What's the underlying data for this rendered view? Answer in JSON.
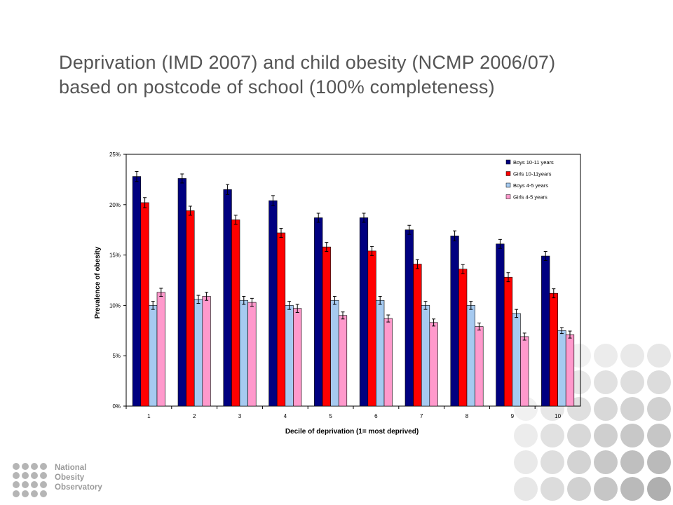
{
  "slide": {
    "title": "Deprivation (IMD 2007) and child obesity (NCMP 2006/07) based on postcode of school (100% completeness)"
  },
  "logo": {
    "line1": "National",
    "line2": "Obesity",
    "line3": "Observatory",
    "color": "#b5b5b5"
  },
  "chart_data": {
    "type": "bar",
    "xlabel": "Decile of deprivation (1= most deprived)",
    "ylabel": "Prevalence of obesity",
    "ylim": [
      0,
      25
    ],
    "yticks": [
      "0%",
      "5%",
      "10%",
      "15%",
      "20%",
      "25%"
    ],
    "categories": [
      "1",
      "2",
      "3",
      "4",
      "5",
      "6",
      "7",
      "8",
      "9",
      "10"
    ],
    "legend_position": "top-right",
    "grid": false,
    "error_bars": true,
    "series": [
      {
        "name": "Boys 10-11 years",
        "color": "#000080",
        "values": [
          22.8,
          22.6,
          21.5,
          20.4,
          18.7,
          18.7,
          17.5,
          16.9,
          16.1,
          14.9
        ],
        "error": [
          0.5,
          0.45,
          0.5,
          0.5,
          0.45,
          0.45,
          0.45,
          0.5,
          0.45,
          0.45
        ]
      },
      {
        "name": "Girls 10-11years",
        "color": "#ff0000",
        "values": [
          20.2,
          19.4,
          18.5,
          17.2,
          15.8,
          15.4,
          14.1,
          13.6,
          12.8,
          11.2
        ],
        "error": [
          0.5,
          0.45,
          0.45,
          0.45,
          0.45,
          0.45,
          0.45,
          0.45,
          0.45,
          0.45
        ]
      },
      {
        "name": "Boys 4-5 years",
        "color": "#a6caf0",
        "values": [
          10.0,
          10.6,
          10.5,
          10.0,
          10.5,
          10.5,
          10.0,
          10.0,
          9.2,
          7.5
        ],
        "error": [
          0.4,
          0.4,
          0.4,
          0.4,
          0.4,
          0.4,
          0.4,
          0.4,
          0.4,
          0.3
        ]
      },
      {
        "name": "Girls 4-5 years",
        "color": "#ff99cc",
        "values": [
          11.3,
          10.9,
          10.3,
          9.7,
          9.0,
          8.7,
          8.3,
          7.9,
          6.9,
          7.1
        ],
        "error": [
          0.4,
          0.4,
          0.4,
          0.4,
          0.35,
          0.35,
          0.35,
          0.35,
          0.35,
          0.35
        ]
      }
    ]
  }
}
